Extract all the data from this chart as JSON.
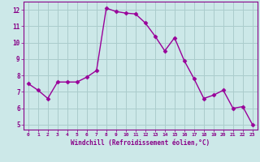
{
  "x_values": [
    0,
    1,
    2,
    3,
    4,
    5,
    6,
    7,
    8,
    9,
    10,
    11,
    12,
    13,
    14,
    15,
    16,
    17,
    18,
    19,
    20,
    21,
    22,
    23
  ],
  "y_values": [
    7.5,
    7.1,
    6.6,
    7.6,
    7.6,
    7.6,
    7.9,
    8.3,
    12.1,
    11.9,
    11.8,
    11.75,
    11.2,
    10.4,
    9.5,
    10.3,
    8.9,
    7.8,
    6.6,
    6.8,
    7.1,
    6.0,
    6.1,
    5.0
  ],
  "line_color": "#990099",
  "marker": "D",
  "marker_size": 2.5,
  "bg_color": "#cce8e8",
  "grid_color": "#aacccc",
  "xlabel": "Windchill (Refroidissement éolien,°C)",
  "xlabel_color": "#880088",
  "tick_color": "#880088",
  "axis_color": "#880088",
  "ylim": [
    4.7,
    12.5
  ],
  "yticks": [
    5,
    6,
    7,
    8,
    9,
    10,
    11,
    12
  ],
  "xlim": [
    -0.5,
    23.5
  ],
  "xticks": [
    0,
    1,
    2,
    3,
    4,
    5,
    6,
    7,
    8,
    9,
    10,
    11,
    12,
    13,
    14,
    15,
    16,
    17,
    18,
    19,
    20,
    21,
    22,
    23
  ]
}
